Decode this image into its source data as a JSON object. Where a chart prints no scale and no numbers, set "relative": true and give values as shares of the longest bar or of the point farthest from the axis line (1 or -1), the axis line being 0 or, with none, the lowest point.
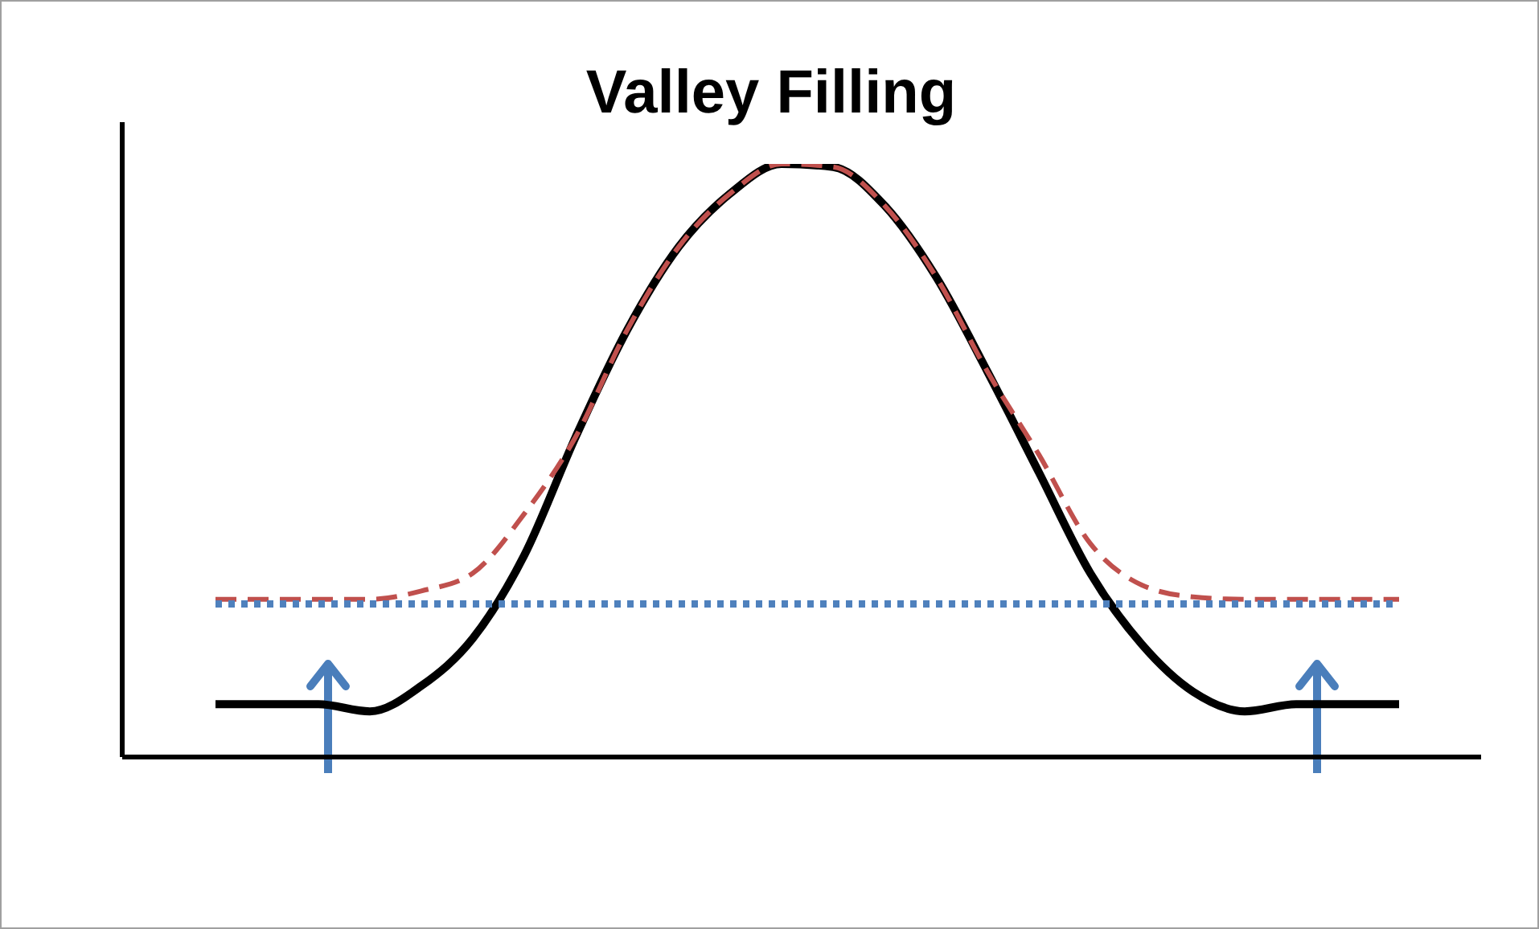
{
  "chart_data": {
    "type": "line",
    "title": "Valley Filling",
    "relative": true,
    "grid": false,
    "legend": false,
    "marker": "none",
    "categories": [
      null,
      null,
      null,
      null,
      null,
      null,
      null,
      null,
      null,
      null,
      null,
      null,
      null,
      null,
      null,
      null,
      null,
      null,
      null,
      null,
      null,
      null,
      null,
      null
    ],
    "series": [
      {
        "color": "#000000",
        "line_style": "solid",
        "values": [
          0.089,
          0.089,
          0.089,
          0.077,
          0.12,
          0.2,
          0.34,
          0.54,
          0.72,
          0.86,
          0.95,
          1.0,
          0.995,
          0.93,
          0.81,
          0.65,
          0.48,
          0.31,
          0.19,
          0.11,
          0.077,
          0.089,
          0.089,
          0.089
        ]
      },
      {
        "color": "#c0504d",
        "line_style": "dashed",
        "values": [
          0.266,
          0.266,
          0.266,
          0.266,
          0.28,
          0.31,
          0.41,
          0.54,
          0.72,
          0.86,
          0.95,
          1.0,
          0.995,
          0.93,
          0.81,
          0.65,
          0.51,
          0.36,
          0.29,
          0.27,
          0.266,
          0.266,
          0.266,
          0.266
        ]
      },
      {
        "color": "#4f81bd",
        "line_style": "dotted",
        "values": [
          0.258,
          0.258,
          0.258,
          0.258,
          0.258,
          0.258,
          0.258,
          0.258,
          0.258,
          0.258,
          0.258,
          0.258,
          0.258,
          0.258,
          0.258,
          0.258,
          0.258,
          0.258,
          0.258,
          0.258,
          0.258,
          0.258,
          0.258,
          0.258
        ]
      }
    ]
  }
}
